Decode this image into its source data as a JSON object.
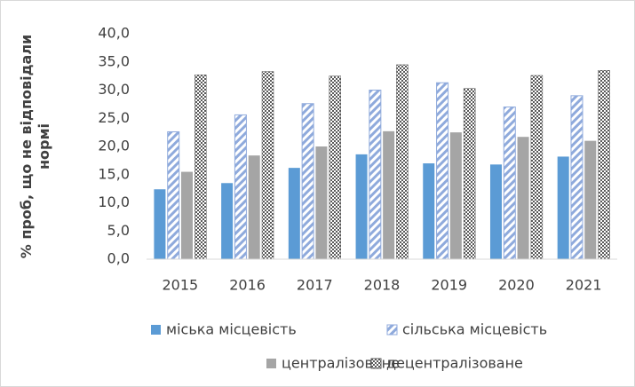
{
  "chart_data": {
    "type": "bar",
    "ylabel": [
      "% проб, що не відповідали",
      "нормі"
    ],
    "categories": [
      "2015",
      "2016",
      "2017",
      "2018",
      "2019",
      "2020",
      "2021"
    ],
    "series": [
      {
        "name": "міська місцевість",
        "color": "#5b9bd5",
        "pattern": "solid",
        "values": [
          12.4,
          13.5,
          16.2,
          18.6,
          17.0,
          16.8,
          18.2
        ]
      },
      {
        "name": "сільська місцевість",
        "color": "#8faadc",
        "pattern": "hatch",
        "values": [
          22.6,
          25.6,
          27.6,
          30.0,
          31.3,
          27.0,
          29.0
        ]
      },
      {
        "name": "централізоване",
        "color": "#a5a5a5",
        "pattern": "solid",
        "values": [
          15.5,
          18.4,
          20.0,
          22.7,
          22.5,
          21.7,
          21.0
        ]
      },
      {
        "name": "децентралізоване",
        "color": "#595959",
        "pattern": "checker",
        "values": [
          32.7,
          33.3,
          32.5,
          34.5,
          30.3,
          32.6,
          33.5
        ]
      }
    ],
    "ylim": [
      0,
      40
    ],
    "yticks": [
      {
        "value": 0,
        "label": "0,0"
      },
      {
        "value": 5,
        "label": "5,0"
      },
      {
        "value": 10,
        "label": "10,0"
      },
      {
        "value": 15,
        "label": "15,0"
      },
      {
        "value": 20,
        "label": "20,0"
      },
      {
        "value": 25,
        "label": "25,0"
      },
      {
        "value": 30,
        "label": "30,0"
      },
      {
        "value": 35,
        "label": "35,0"
      },
      {
        "value": 40,
        "label": "40,0"
      }
    ],
    "grid": false,
    "legend": "bottom"
  }
}
